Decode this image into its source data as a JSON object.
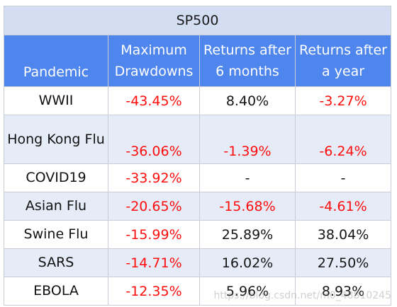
{
  "chart_data": {
    "type": "table",
    "title": "SP500",
    "columns": [
      "Pandemic",
      "Maximum Drawdowns",
      "Returns after 6 months",
      "Returns after a year"
    ],
    "rows": [
      {
        "pandemic": "WWII",
        "max_drawdown": "-43.45%",
        "return_6m": "8.40%",
        "return_1y": "-3.27%"
      },
      {
        "pandemic": "Hong Kong Flu",
        "max_drawdown": "-36.06%",
        "return_6m": "-1.39%",
        "return_1y": "-6.24%"
      },
      {
        "pandemic": "COVID19",
        "max_drawdown": "-33.92%",
        "return_6m": "-",
        "return_1y": "-"
      },
      {
        "pandemic": "Asian Flu",
        "max_drawdown": "-20.65%",
        "return_6m": "-15.68%",
        "return_1y": "-4.61%"
      },
      {
        "pandemic": "Swine Flu",
        "max_drawdown": "-15.99%",
        "return_6m": "25.89%",
        "return_1y": "38.04%"
      },
      {
        "pandemic": "SARS",
        "max_drawdown": "-14.71%",
        "return_6m": "16.02%",
        "return_1y": "27.50%"
      },
      {
        "pandemic": "EBOLA",
        "max_drawdown": "-12.35%",
        "return_6m": "5.96%",
        "return_1y": "8.93%"
      }
    ]
  },
  "colors": {
    "header_background": "#4f86ee",
    "title_background": "#d3def3",
    "stripe_background": "#e6ecf7",
    "negative_text": "#ff0d0d",
    "positive_text": "#151515"
  },
  "watermark": "https://blog.csdn.net/m0_48810245"
}
